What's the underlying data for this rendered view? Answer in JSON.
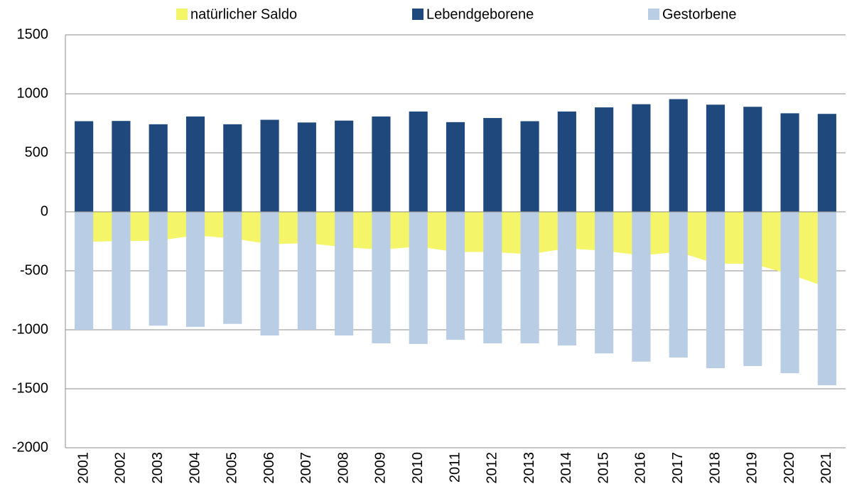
{
  "chart_data": {
    "type": "bar",
    "categories": [
      "2001",
      "2002",
      "2003",
      "2004",
      "2005",
      "2006",
      "2007",
      "2008",
      "2009",
      "2010",
      "2011",
      "2012",
      "2013",
      "2014",
      "2015",
      "2016",
      "2017",
      "2018",
      "2019",
      "2020",
      "2021"
    ],
    "series": [
      {
        "name": "natürlicher Saldo",
        "color": "#f5f56a",
        "kind": "area",
        "values": [
          -255,
          -248,
          -245,
          -200,
          -225,
          -275,
          -265,
          -300,
          -320,
          -295,
          -340,
          -340,
          -360,
          -310,
          -330,
          -370,
          -340,
          -440,
          -440,
          -530,
          -640
        ]
      },
      {
        "name": "Lebendgeborene",
        "color": "#1f497d",
        "kind": "bar",
        "values": [
          768,
          770,
          742,
          808,
          742,
          780,
          757,
          773,
          808,
          850,
          760,
          795,
          768,
          850,
          885,
          912,
          955,
          908,
          890,
          835,
          830
        ]
      },
      {
        "name": "Gestorbene",
        "color": "#b9cde5",
        "kind": "bar",
        "values": [
          -1000,
          -1000,
          -965,
          -975,
          -950,
          -1048,
          -1000,
          -1048,
          -1115,
          -1120,
          -1085,
          -1115,
          -1115,
          -1133,
          -1200,
          -1270,
          -1235,
          -1325,
          -1307,
          -1368,
          -1470
        ]
      }
    ],
    "ylim": [
      -2000,
      1500
    ],
    "yticks": [
      -2000,
      -1500,
      -1000,
      -500,
      0,
      500,
      1000,
      1500
    ],
    "grid": true
  }
}
